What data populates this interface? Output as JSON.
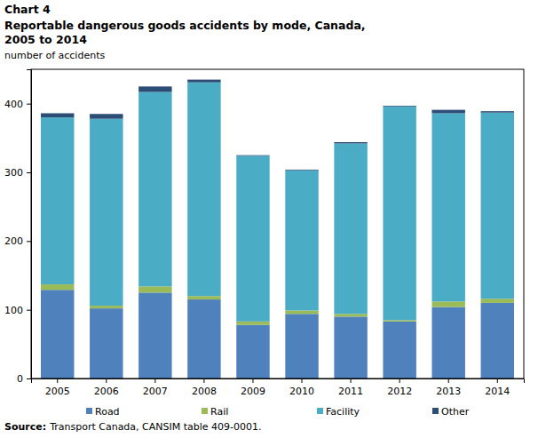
{
  "chart_data": {
    "type": "bar",
    "stacked": true,
    "grid": false,
    "legend": "bottom",
    "title": "Chart 4",
    "subtitle": [
      "Reportable dangerous goods accidents by mode, Canada,",
      "2005 to 2014"
    ],
    "ylabel": "number of accidents",
    "source_label": "Source:",
    "source": "Transport Canada, CANSIM table 409-0001.",
    "categories": [
      "2005",
      "2006",
      "2007",
      "2008",
      "2009",
      "2010",
      "2011",
      "2012",
      "2013",
      "2014"
    ],
    "series": [
      {
        "name": "Road",
        "color": "#4f81bd",
        "values": [
          129,
          102,
          125,
          115,
          78,
          94,
          90,
          83,
          104,
          110
        ]
      },
      {
        "name": "Rail",
        "color": "#9bbb59",
        "values": [
          8,
          4,
          9,
          5,
          5,
          5,
          4,
          2,
          8,
          6
        ]
      },
      {
        "name": "Facility",
        "color": "#4bacc6",
        "values": [
          243,
          272,
          283,
          311,
          241,
          204,
          248,
          311,
          274,
          271
        ]
      },
      {
        "name": "Other",
        "color": "#2c4d75",
        "values": [
          6,
          7,
          8,
          4,
          1,
          1,
          2,
          1,
          5,
          2
        ]
      }
    ],
    "ylim": [
      0,
      450
    ],
    "yticks": [
      0,
      100,
      200,
      300,
      400
    ]
  }
}
